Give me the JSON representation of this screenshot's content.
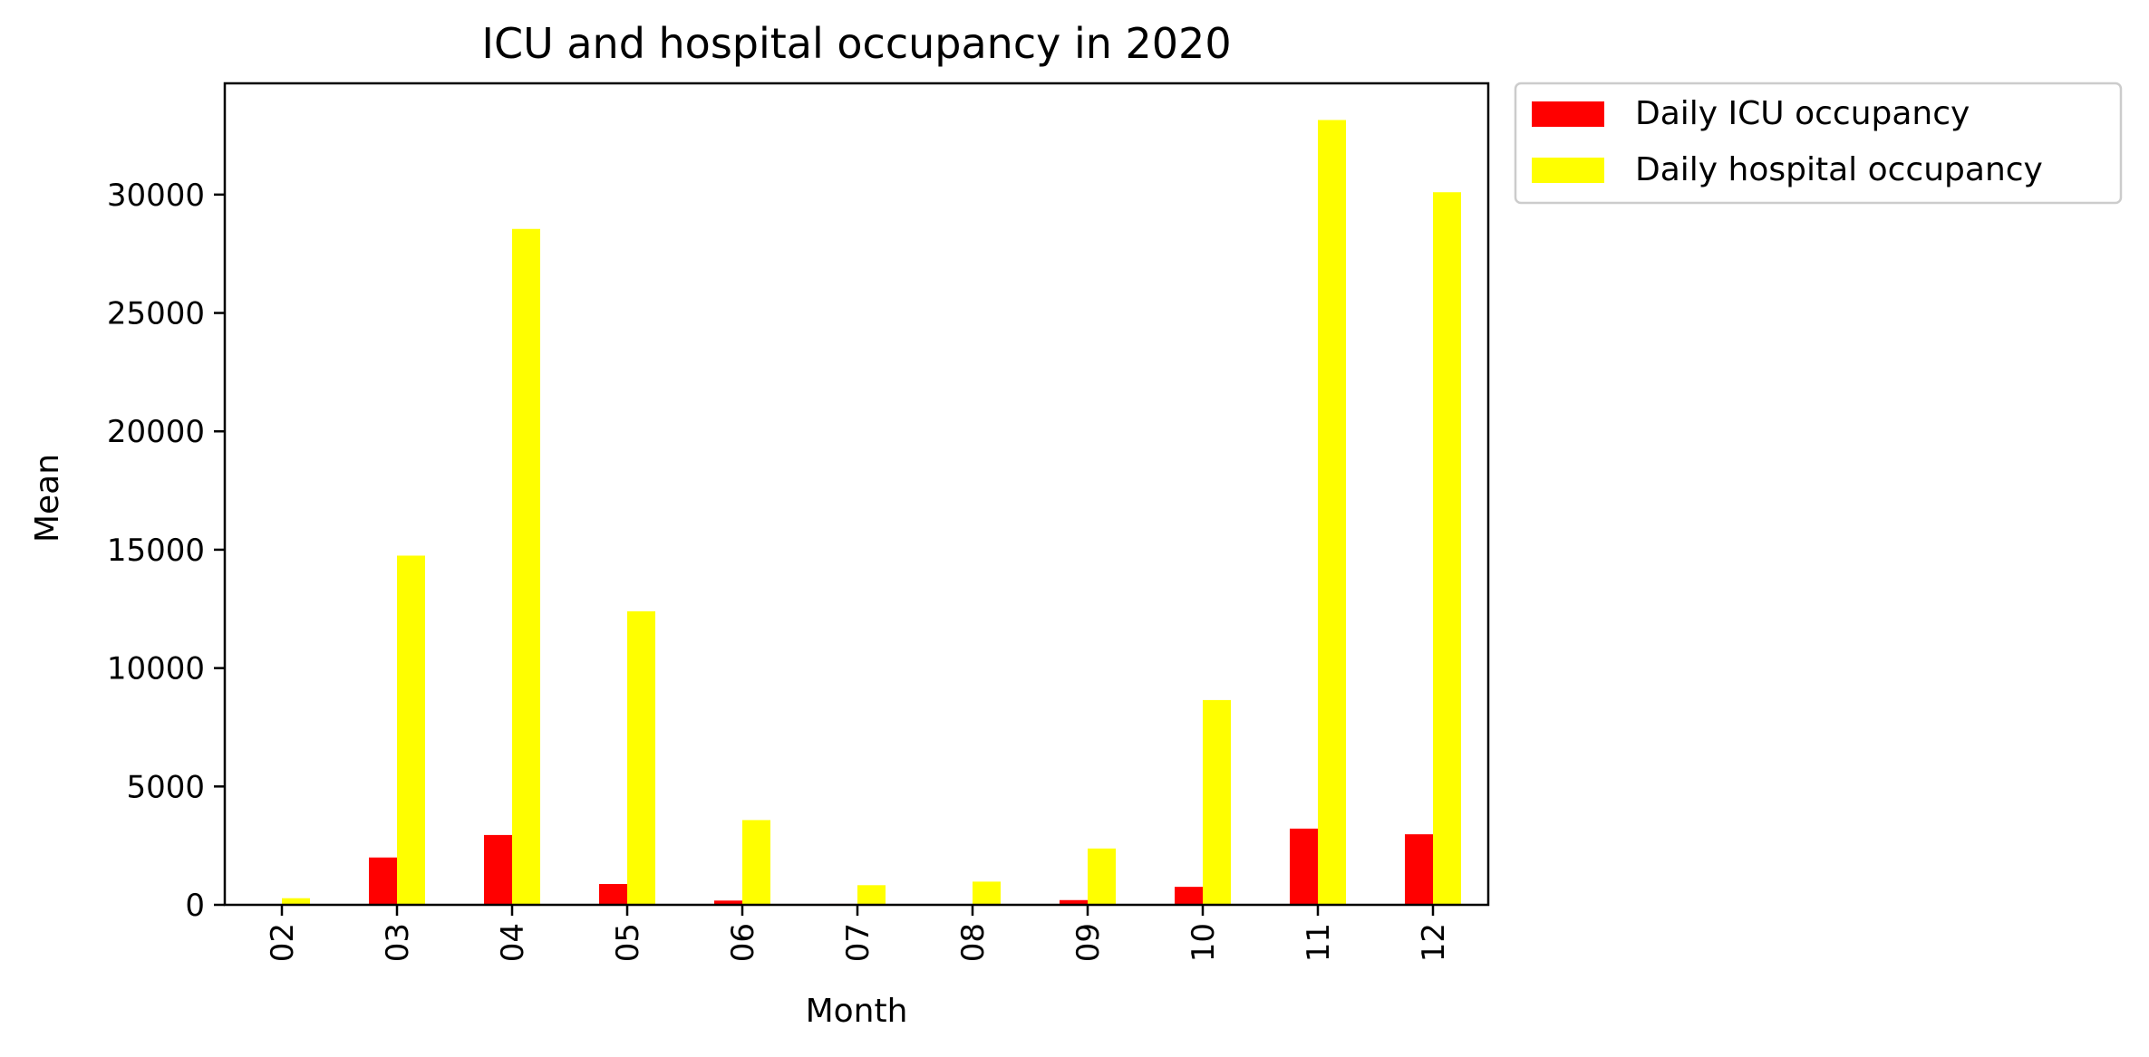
{
  "chart_data": {
    "type": "bar",
    "title": "ICU and hospital occupancy in 2020",
    "xlabel": "Month",
    "ylabel": "Mean",
    "categories": [
      "02",
      "03",
      "04",
      "05",
      "06",
      "07",
      "08",
      "09",
      "10",
      "11",
      "12"
    ],
    "series": [
      {
        "name": "Daily ICU occupancy",
        "color": "#ff0000",
        "values": [
          10,
          2000,
          2950,
          880,
          180,
          40,
          30,
          200,
          760,
          3220,
          2980
        ]
      },
      {
        "name": "Daily hospital occupancy",
        "color": "#ffff00",
        "values": [
          280,
          14750,
          28550,
          12400,
          3580,
          830,
          980,
          2380,
          8650,
          33150,
          30100
        ]
      }
    ],
    "ylim": [
      0,
      34700
    ],
    "yticks": [
      0,
      5000,
      10000,
      15000,
      20000,
      25000,
      30000
    ],
    "tick_label_rotation_x": "vertical",
    "grid": false,
    "legend_placement": "outside-top-right"
  }
}
